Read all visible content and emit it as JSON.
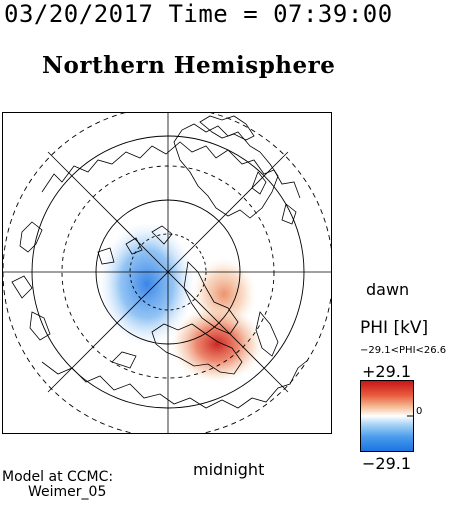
{
  "header": {
    "time_title": "03/20/2017 Time = 07:39:00",
    "hemisphere_title": "Northern Hemisphere"
  },
  "map": {
    "dawn_label": "dawn",
    "midnight_label": "midnight",
    "colors": {
      "negative": "#3f8fe8",
      "positive": "#d62a1e",
      "frame": "#000000"
    }
  },
  "legend": {
    "phi_title": "PHI [kV]",
    "phi_range": "−29.1<PHI<26.6",
    "max_label": "+29.1",
    "zero_label": "0",
    "min_label": "−29.1"
  },
  "footer": {
    "model_line1": "Model at CCMC:",
    "model_line2": "Weimer_05"
  }
}
